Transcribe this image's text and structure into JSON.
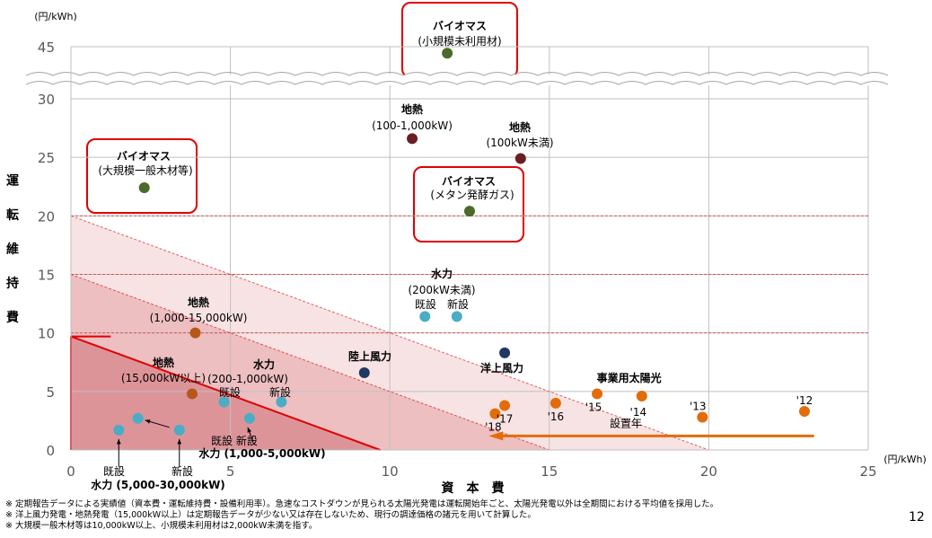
{
  "chart_data": {
    "type": "scatter",
    "xlabel": "資　本　費",
    "xunit": "(円/kWh)",
    "ylabel": "運転維持費",
    "yunit": "(円/kWh)",
    "xlim": [
      0,
      25
    ],
    "ylim": [
      0,
      45
    ],
    "y_axis_break": [
      31,
      44
    ],
    "xticks": [
      0,
      5,
      10,
      15,
      20,
      25
    ],
    "yticks": [
      0,
      5,
      10,
      15,
      20,
      25,
      30,
      45
    ],
    "grid": true,
    "iso_lines": [
      {
        "x_intercept": 9.7,
        "y_intercept": 9.7,
        "color": "#e00000"
      },
      {
        "x_intercept": 15,
        "y_intercept": 15,
        "color": "#e05050"
      },
      {
        "x_intercept": 20,
        "y_intercept": 20,
        "color": "#e06060"
      }
    ],
    "points": [
      {
        "id": "bio-small",
        "x": 11.8,
        "y": 44.2,
        "color": "#4a6b2a"
      },
      {
        "id": "geo-100-1000",
        "x": 10.7,
        "y": 26.6,
        "color": "#6b1e22"
      },
      {
        "id": "geo-under100",
        "x": 14.1,
        "y": 24.9,
        "color": "#6b1e22"
      },
      {
        "id": "bio-large",
        "x": 2.3,
        "y": 22.4,
        "color": "#4a6b2a"
      },
      {
        "id": "bio-methane",
        "x": 12.5,
        "y": 20.4,
        "color": "#4a6b2a"
      },
      {
        "id": "hydro200-existing",
        "x": 11.1,
        "y": 11.4,
        "color": "#4bacc6"
      },
      {
        "id": "hydro200-new",
        "x": 12.1,
        "y": 11.4,
        "color": "#4bacc6"
      },
      {
        "id": "geo-1000-15000",
        "x": 3.9,
        "y": 10.0,
        "color": "#b5581c"
      },
      {
        "id": "offshore-wind",
        "x": 13.6,
        "y": 8.3,
        "color": "#1f3864"
      },
      {
        "id": "onshore-wind",
        "x": 9.2,
        "y": 6.6,
        "color": "#1f3864"
      },
      {
        "id": "geo-over15000",
        "x": 3.8,
        "y": 4.8,
        "color": "#b5581c"
      },
      {
        "id": "hydro200-1000-existing",
        "x": 4.8,
        "y": 4.1,
        "color": "#4bacc6"
      },
      {
        "id": "hydro200-1000-new",
        "x": 6.6,
        "y": 4.1,
        "color": "#4bacc6"
      },
      {
        "id": "hydro1000-5000-existing",
        "x": 2.1,
        "y": 2.7,
        "color": "#4bacc6"
      },
      {
        "id": "hydro1000-5000-new",
        "x": 5.6,
        "y": 2.7,
        "color": "#4bacc6"
      },
      {
        "id": "hydro5000-30000-existing",
        "x": 1.5,
        "y": 1.7,
        "color": "#4bacc6"
      },
      {
        "id": "hydro5000-30000-new",
        "x": 3.4,
        "y": 1.7,
        "color": "#4bacc6"
      }
    ],
    "solar_series": {
      "name": "事業用太陽光",
      "color": "#e36c0a",
      "points": [
        {
          "year": "'12",
          "x": 23.0,
          "y": 3.3
        },
        {
          "year": "'13",
          "x": 19.8,
          "y": 2.8
        },
        {
          "year": "'14",
          "x": 17.9,
          "y": 4.6
        },
        {
          "year": "'15",
          "x": 16.5,
          "y": 4.8
        },
        {
          "year": "'16",
          "x": 15.2,
          "y": 4.0
        },
        {
          "year": "'17",
          "x": 13.6,
          "y": 3.8
        },
        {
          "year": "'18",
          "x": 13.3,
          "y": 3.1
        }
      ],
      "arrow_label": "設置年"
    },
    "annotations": [
      {
        "id": "bio-small-label",
        "lines": [
          "バイオマス",
          "(小規模未利用材)"
        ],
        "boxed": true
      },
      {
        "id": "geo-100-1000-label",
        "lines": [
          "地熱",
          "(100-1,000kW)"
        ]
      },
      {
        "id": "geo-under100-label",
        "lines": [
          "地熱",
          "(100kW未満)"
        ]
      },
      {
        "id": "bio-large-label",
        "lines": [
          "バイオマス",
          "(大規模一般木材等)"
        ],
        "boxed": true
      },
      {
        "id": "bio-methane-label",
        "lines": [
          "バイオマス",
          "(メタン発酵ガス)"
        ],
        "boxed": true
      },
      {
        "id": "hydro200-label",
        "lines": [
          "水力",
          "(200kW未満)",
          "既設　新設"
        ]
      },
      {
        "id": "geo-1000-15000-label",
        "lines": [
          "地熱",
          "(1,000-15,000kW)"
        ]
      },
      {
        "id": "offshore-label",
        "lines": [
          "洋上風力"
        ]
      },
      {
        "id": "onshore-label",
        "lines": [
          "陸上風力"
        ]
      },
      {
        "id": "geo-over15000-label",
        "lines": [
          "地熱",
          "(15,000kW以上)"
        ]
      },
      {
        "id": "hydro200-1000-label",
        "lines": [
          "水力",
          "(200-1,000kW)",
          "既設",
          "新設"
        ]
      },
      {
        "id": "hydro1000-5000-label",
        "lines": [
          "既設 新設",
          "水力 (1,000-5,000kW)"
        ]
      },
      {
        "id": "hydro5000-30000-label",
        "lines": [
          "既設",
          "新設",
          "水力 (5,000-30,000kW)"
        ]
      }
    ]
  },
  "footnotes": [
    "※ 定期報告データによる実績値（資本費・運転維持費・設備利用率）。急速なコストダウンが見られる太陽光発電は運転開始年ごと、太陽光発電以外は全期間における平均値を採用した。",
    "※ 洋上風力発電・地熱発電（15,000kW以上）は定期報告データが少ない又は存在しないため、現行の調達価格の諸元を用いて計算した。",
    "※ 大規模一般木材等は10,000kW以上、小規模未利用材は2,000kW未満を指す。"
  ],
  "page_number": "12"
}
